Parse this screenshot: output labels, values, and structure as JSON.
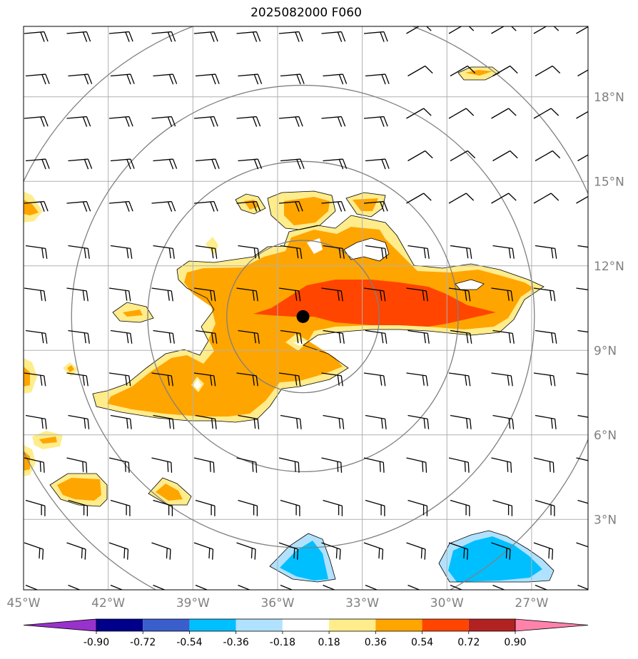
{
  "title": "2025082000 F060",
  "map": {
    "lon_range": [
      -45,
      -25
    ],
    "lat_range": [
      0.5,
      20.5
    ],
    "lon_ticks": [
      {
        "value": -45,
        "label": "45°W"
      },
      {
        "value": -42,
        "label": "42°W"
      },
      {
        "value": -39,
        "label": "39°W"
      },
      {
        "value": -36,
        "label": "36°W"
      },
      {
        "value": -33,
        "label": "33°W"
      },
      {
        "value": -30,
        "label": "30°W"
      },
      {
        "value": -27,
        "label": "27°W"
      }
    ],
    "lat_ticks": [
      {
        "value": 18,
        "label": "18°N"
      },
      {
        "value": 15,
        "label": "15°N"
      },
      {
        "value": 12,
        "label": "12°N"
      },
      {
        "value": 9,
        "label": "9°N"
      },
      {
        "value": 6,
        "label": "6°N"
      },
      {
        "value": 3,
        "label": "3°N"
      }
    ],
    "center": {
      "lon": -35.1,
      "lat": 10.2
    },
    "range_rings_deg": [
      2.7,
      5.5,
      8.2,
      11.0
    ],
    "colors": {
      "ring": "#808080",
      "grid": "#b0b0b0",
      "barb": "#000000",
      "center_marker": "#000000"
    }
  },
  "colorbar": {
    "levels": [
      "-0.90",
      "-0.72",
      "-0.54",
      "-0.36",
      "-0.18",
      "0.18",
      "0.36",
      "0.54",
      "0.72",
      "0.90"
    ],
    "colors": [
      "#9932cc",
      "#00008b",
      "#3a5fcd",
      "#00bfff",
      "#b0e2ff",
      "#ffffff",
      "#ffec8b",
      "#ffa500",
      "#ff4500",
      "#b22222",
      "#ff82ab"
    ],
    "extend": "both"
  }
}
